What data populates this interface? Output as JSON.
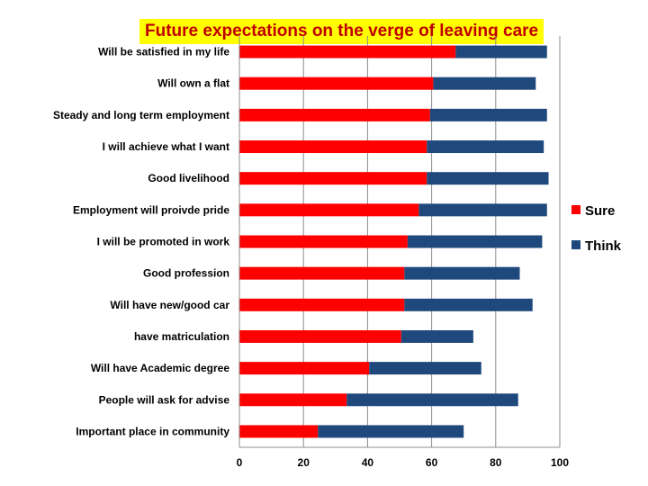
{
  "chart_data": {
    "type": "bar",
    "orientation": "horizontal",
    "stacked": true,
    "title": "Future expectations on the verge of leaving care",
    "categories": [
      "Will be satisfied in my life",
      "Will own a flat",
      "Steady and long term employment",
      "I will achieve what I want",
      "Good livelihood",
      "Employment will proivde pride",
      "I will be promoted in work",
      "Good profession",
      "Will have new/good car",
      "have matriculation",
      "Will have Academic degree",
      "People will ask for advise",
      "Important place in community"
    ],
    "series": [
      {
        "name": "Sure",
        "color": "#ff0000",
        "values": [
          67.5,
          60.5,
          59.5,
          58.5,
          58.5,
          56,
          52.5,
          51.5,
          51.5,
          50.5,
          40.5,
          33.5,
          24.5
        ]
      },
      {
        "name": "Think",
        "color": "#1f497d",
        "values": [
          28.5,
          32,
          36.5,
          36.5,
          38,
          40,
          42,
          36,
          40,
          22.5,
          35,
          53.5,
          45.5
        ]
      }
    ],
    "xlim": [
      0,
      100
    ],
    "xticks": [
      0,
      20,
      40,
      60,
      80,
      100
    ],
    "grid": "vertical",
    "legend": "right"
  }
}
